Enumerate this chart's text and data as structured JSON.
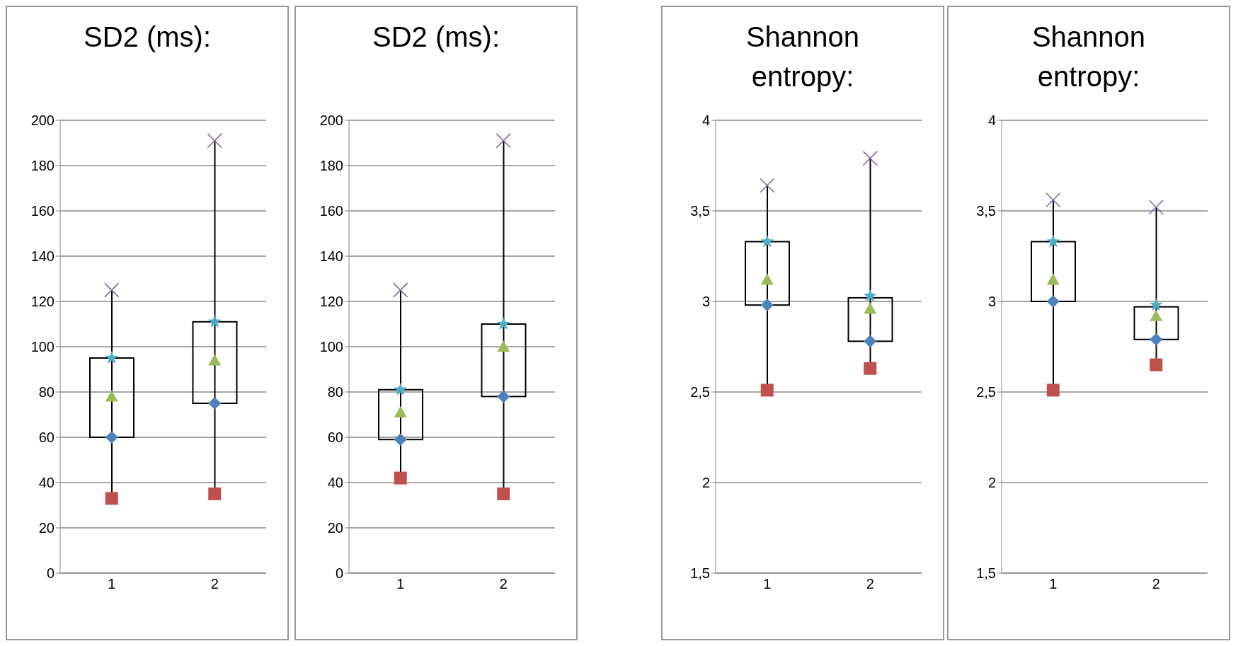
{
  "chart_data": [
    {
      "type": "box",
      "title": "SD2 (ms):",
      "categories": [
        "1",
        "2"
      ],
      "boxes": [
        {
          "low": 33,
          "q1": 60,
          "q3": 95,
          "high": 125
        },
        {
          "low": 35,
          "q1": 75,
          "q3": 111,
          "high": 191
        }
      ],
      "series": [
        {
          "type": "scatter",
          "x": [
            "1",
            "2"
          ],
          "values": [
            33,
            35
          ],
          "color": "#c0504d",
          "marker": "square"
        },
        {
          "type": "scatter",
          "x": [
            "1",
            "2"
          ],
          "values": [
            60,
            75
          ],
          "color": "#4f81bd",
          "marker": "diamond"
        },
        {
          "type": "scatter",
          "x": [
            "1",
            "2"
          ],
          "values": [
            78,
            94
          ],
          "color": "#9bbb59",
          "marker": "triangle"
        },
        {
          "type": "scatter",
          "x": [
            "1",
            "2"
          ],
          "values": [
            95,
            111
          ],
          "color": "#4bacc6",
          "marker": "star"
        },
        {
          "type": "scatter",
          "x": [
            "1",
            "2"
          ],
          "values": [
            125,
            191
          ],
          "color": "#8064a2",
          "marker": "cross"
        }
      ],
      "ylim": [
        0,
        200
      ],
      "yticks": [
        0,
        20,
        40,
        60,
        80,
        100,
        120,
        140,
        160,
        180,
        200
      ],
      "grid": "y"
    },
    {
      "type": "box",
      "title": "SD2 (ms):",
      "categories": [
        "1",
        "2"
      ],
      "boxes": [
        {
          "low": 42,
          "q1": 59,
          "q3": 81,
          "high": 125
        },
        {
          "low": 35,
          "q1": 78,
          "q3": 110,
          "high": 191
        }
      ],
      "series": [
        {
          "type": "scatter",
          "x": [
            "1",
            "2"
          ],
          "values": [
            42,
            35
          ],
          "color": "#c0504d",
          "marker": "square"
        },
        {
          "type": "scatter",
          "x": [
            "1",
            "2"
          ],
          "values": [
            59,
            78
          ],
          "color": "#4f81bd",
          "marker": "diamond"
        },
        {
          "type": "scatter",
          "x": [
            "1",
            "2"
          ],
          "values": [
            71,
            100
          ],
          "color": "#9bbb59",
          "marker": "triangle"
        },
        {
          "type": "scatter",
          "x": [
            "1",
            "2"
          ],
          "values": [
            81,
            110
          ],
          "color": "#4bacc6",
          "marker": "star"
        },
        {
          "type": "scatter",
          "x": [
            "1",
            "2"
          ],
          "values": [
            125,
            191
          ],
          "color": "#8064a2",
          "marker": "cross"
        }
      ],
      "ylim": [
        0,
        200
      ],
      "yticks": [
        0,
        20,
        40,
        60,
        80,
        100,
        120,
        140,
        160,
        180,
        200
      ],
      "grid": "y"
    },
    {
      "type": "box",
      "title": "Shannon entropy:",
      "categories": [
        "1",
        "2"
      ],
      "boxes": [
        {
          "low": 2.51,
          "q1": 2.98,
          "q3": 3.33,
          "high": 3.64
        },
        {
          "low": 2.63,
          "q1": 2.78,
          "q3": 3.02,
          "high": 3.79
        }
      ],
      "series": [
        {
          "type": "scatter",
          "x": [
            "1",
            "2"
          ],
          "values": [
            2.51,
            2.63
          ],
          "color": "#c0504d",
          "marker": "square"
        },
        {
          "type": "scatter",
          "x": [
            "1",
            "2"
          ],
          "values": [
            2.98,
            2.78
          ],
          "color": "#4f81bd",
          "marker": "diamond"
        },
        {
          "type": "scatter",
          "x": [
            "1",
            "2"
          ],
          "values": [
            3.12,
            2.96
          ],
          "color": "#9bbb59",
          "marker": "triangle"
        },
        {
          "type": "scatter",
          "x": [
            "1",
            "2"
          ],
          "values": [
            3.33,
            3.03
          ],
          "color": "#4bacc6",
          "marker": "star"
        },
        {
          "type": "scatter",
          "x": [
            "1",
            "2"
          ],
          "values": [
            3.64,
            3.79
          ],
          "color": "#8064a2",
          "marker": "cross"
        }
      ],
      "ylim": [
        1.5,
        4
      ],
      "yticks": [
        {
          "value": 1.5,
          "label": "1,5"
        },
        2,
        {
          "value": 2.5,
          "label": "2,5"
        },
        3,
        {
          "value": 3.5,
          "label": "3,5"
        },
        4
      ],
      "grid": "y"
    },
    {
      "type": "box",
      "title": "Shannon entropy:",
      "categories": [
        "1",
        "2"
      ],
      "boxes": [
        {
          "low": 2.51,
          "q1": 3.0,
          "q3": 3.33,
          "high": 3.56
        },
        {
          "low": 2.65,
          "q1": 2.79,
          "q3": 2.97,
          "high": 3.52
        }
      ],
      "series": [
        {
          "type": "scatter",
          "x": [
            "1",
            "2"
          ],
          "values": [
            2.51,
            2.65
          ],
          "color": "#c0504d",
          "marker": "square"
        },
        {
          "type": "scatter",
          "x": [
            "1",
            "2"
          ],
          "values": [
            3.0,
            2.79
          ],
          "color": "#4f81bd",
          "marker": "diamond"
        },
        {
          "type": "scatter",
          "x": [
            "1",
            "2"
          ],
          "values": [
            3.12,
            2.92
          ],
          "color": "#9bbb59",
          "marker": "triangle"
        },
        {
          "type": "scatter",
          "x": [
            "1",
            "2"
          ],
          "values": [
            3.33,
            2.98
          ],
          "color": "#4bacc6",
          "marker": "star"
        },
        {
          "type": "scatter",
          "x": [
            "1",
            "2"
          ],
          "values": [
            3.56,
            3.52
          ],
          "color": "#8064a2",
          "marker": "cross"
        }
      ],
      "ylim": [
        1.5,
        4
      ],
      "yticks": [
        {
          "value": 1.5,
          "label": "1,5"
        },
        2,
        {
          "value": 2.5,
          "label": "2,5"
        },
        3,
        {
          "value": 3.5,
          "label": "3,5"
        },
        4
      ],
      "grid": "y"
    }
  ]
}
